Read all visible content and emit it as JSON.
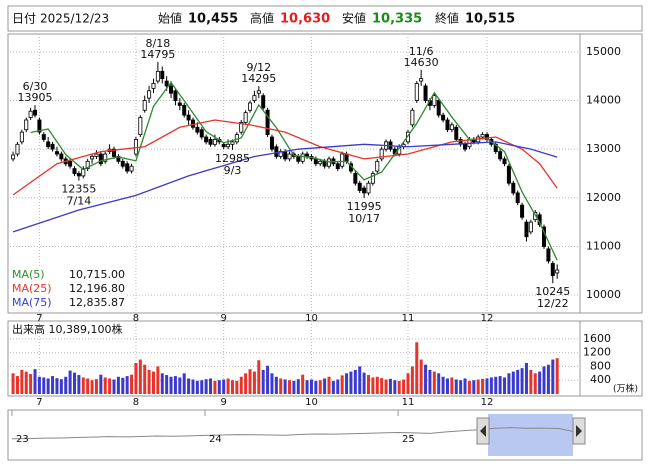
{
  "header": {
    "date_label": "日付",
    "date": "2025/12/23",
    "open_label": "始値",
    "open": "10,455",
    "high_label": "高値",
    "high": "10,630",
    "low_label": "安値",
    "low": "10,335",
    "close_label": "終値",
    "close": "10,515"
  },
  "chart_data": {
    "type": "candlestick",
    "xlim": [
      -0.7,
      129.2
    ],
    "xticks": [
      {
        "value": 6,
        "label": "7"
      },
      {
        "value": 28,
        "label": "8"
      },
      {
        "value": 48,
        "label": "9"
      },
      {
        "value": 68,
        "label": "10"
      },
      {
        "value": 90,
        "label": "11"
      },
      {
        "value": 108,
        "label": "12"
      }
    ],
    "ylim": [
      9673,
      15347
    ],
    "yticks": [
      10000,
      11000,
      12000,
      13000,
      14000,
      15000
    ],
    "grid": true,
    "up_color": "#ffffff",
    "down_color": "#000000",
    "ohlc": [
      [
        12800,
        12950,
        12750,
        12880
      ],
      [
        12900,
        13150,
        12850,
        13100
      ],
      [
        13150,
        13400,
        13100,
        13350
      ],
      [
        13400,
        13650,
        13350,
        13600
      ],
      [
        13650,
        13850,
        13600,
        13780
      ],
      [
        13800,
        13905,
        13650,
        13700
      ],
      [
        13600,
        13650,
        13300,
        13350
      ],
      [
        13300,
        13350,
        13150,
        13200
      ],
      [
        13150,
        13250,
        13000,
        13050
      ],
      [
        13100,
        13150,
        12950,
        13000
      ],
      [
        12950,
        13050,
        12850,
        12900
      ],
      [
        12900,
        12950,
        12750,
        12800
      ],
      [
        12800,
        12850,
        12650,
        12700
      ],
      [
        12750,
        12800,
        12600,
        12650
      ],
      [
        12600,
        12650,
        12450,
        12500
      ],
      [
        12500,
        12550,
        12355,
        12450
      ],
      [
        12450,
        12650,
        12400,
        12600
      ],
      [
        12600,
        12800,
        12550,
        12750
      ],
      [
        12800,
        12900,
        12700,
        12850
      ],
      [
        12850,
        12980,
        12800,
        12900
      ],
      [
        12900,
        12950,
        12650,
        12700
      ],
      [
        12750,
        12950,
        12700,
        12900
      ],
      [
        12950,
        13100,
        12900,
        13000
      ],
      [
        13000,
        13050,
        12800,
        12850
      ],
      [
        12850,
        12900,
        12700,
        12750
      ],
      [
        12750,
        12800,
        12600,
        12650
      ],
      [
        12700,
        12750,
        12500,
        12550
      ],
      [
        12550,
        12700,
        12500,
        12650
      ],
      [
        12900,
        13250,
        12850,
        13200
      ],
      [
        13300,
        13700,
        13250,
        13650
      ],
      [
        13800,
        14100,
        13750,
        14000
      ],
      [
        14050,
        14300,
        13950,
        14200
      ],
      [
        14250,
        14450,
        14150,
        14350
      ],
      [
        14400,
        14795,
        14350,
        14600
      ],
      [
        14600,
        14700,
        14350,
        14450
      ],
      [
        14400,
        14500,
        14200,
        14300
      ],
      [
        14300,
        14400,
        14050,
        14150
      ],
      [
        14200,
        14250,
        13900,
        14000
      ],
      [
        13950,
        14050,
        13800,
        13900
      ],
      [
        13900,
        13950,
        13650,
        13700
      ],
      [
        13700,
        13800,
        13500,
        13600
      ],
      [
        13600,
        13650,
        13400,
        13450
      ],
      [
        13450,
        13550,
        13300,
        13350
      ],
      [
        13400,
        13450,
        13200,
        13250
      ],
      [
        13250,
        13300,
        13100,
        13150
      ],
      [
        13200,
        13250,
        13050,
        13100
      ],
      [
        13100,
        13300,
        13050,
        13200
      ],
      [
        13200,
        13250,
        13100,
        13150
      ],
      [
        13100,
        13150,
        13000,
        13050
      ],
      [
        13050,
        13200,
        13000,
        13100
      ],
      [
        13100,
        13200,
        12985,
        13150
      ],
      [
        13150,
        13350,
        13100,
        13300
      ],
      [
        13350,
        13600,
        13300,
        13550
      ],
      [
        13550,
        13800,
        13500,
        13750
      ],
      [
        13800,
        14000,
        13750,
        13950
      ],
      [
        14000,
        14200,
        13950,
        14100
      ],
      [
        14150,
        14295,
        14050,
        14200
      ],
      [
        14100,
        14150,
        13800,
        13850
      ],
      [
        13800,
        13850,
        13250,
        13300
      ],
      [
        13250,
        13300,
        12950,
        13000
      ],
      [
        13050,
        13100,
        12800,
        12850
      ],
      [
        12850,
        13000,
        12800,
        12950
      ],
      [
        12950,
        13000,
        12750,
        12800
      ],
      [
        12800,
        12950,
        12750,
        12900
      ],
      [
        12900,
        12950,
        12800,
        12850
      ],
      [
        12850,
        12900,
        12700,
        12750
      ],
      [
        12750,
        12950,
        12700,
        12900
      ],
      [
        12900,
        12950,
        12800,
        12850
      ],
      [
        12850,
        12900,
        12750,
        12800
      ],
      [
        12800,
        12850,
        12650,
        12700
      ],
      [
        12700,
        12800,
        12650,
        12750
      ],
      [
        12750,
        12800,
        12600,
        12650
      ],
      [
        12650,
        12850,
        12600,
        12800
      ],
      [
        12800,
        12850,
        12650,
        12700
      ],
      [
        12700,
        12750,
        12550,
        12600
      ],
      [
        12650,
        12950,
        12600,
        12900
      ],
      [
        12900,
        12950,
        12700,
        12750
      ],
      [
        12700,
        12750,
        12500,
        12550
      ],
      [
        12500,
        12550,
        12250,
        12300
      ],
      [
        12300,
        12350,
        12100,
        12150
      ],
      [
        12200,
        12250,
        11995,
        12100
      ],
      [
        12100,
        12350,
        12050,
        12300
      ],
      [
        12300,
        12550,
        12250,
        12500
      ],
      [
        12550,
        12800,
        12500,
        12750
      ],
      [
        12800,
        13050,
        12750,
        13000
      ],
      [
        13000,
        13200,
        12950,
        13150
      ],
      [
        13150,
        13200,
        12950,
        13000
      ],
      [
        13000,
        13050,
        12850,
        12900
      ],
      [
        12900,
        13100,
        12850,
        13050
      ],
      [
        13050,
        13150,
        13000,
        13100
      ],
      [
        13150,
        13400,
        13100,
        13350
      ],
      [
        13500,
        13850,
        13450,
        13800
      ],
      [
        14000,
        14400,
        13950,
        14350
      ],
      [
        14400,
        14630,
        14300,
        14450
      ],
      [
        14300,
        14350,
        13950,
        14000
      ],
      [
        14000,
        14050,
        13800,
        13900
      ],
      [
        13900,
        14150,
        13850,
        14100
      ],
      [
        14000,
        14050,
        13650,
        13700
      ],
      [
        13700,
        13750,
        13550,
        13600
      ],
      [
        13600,
        13650,
        13350,
        13400
      ],
      [
        13400,
        13550,
        13350,
        13500
      ],
      [
        13450,
        13500,
        13150,
        13200
      ],
      [
        13200,
        13250,
        13050,
        13100
      ],
      [
        13100,
        13150,
        12950,
        13000
      ],
      [
        13050,
        13250,
        13000,
        13200
      ],
      [
        13200,
        13250,
        13100,
        13150
      ],
      [
        13150,
        13300,
        13100,
        13250
      ],
      [
        13250,
        13350,
        13200,
        13300
      ],
      [
        13300,
        13350,
        13150,
        13200
      ],
      [
        13200,
        13250,
        13050,
        13100
      ],
      [
        13100,
        13150,
        12900,
        12950
      ],
      [
        12950,
        13000,
        12750,
        12800
      ],
      [
        12800,
        12850,
        12650,
        12700
      ],
      [
        12650,
        12700,
        12250,
        12300
      ],
      [
        12300,
        12350,
        12050,
        12100
      ],
      [
        12100,
        12150,
        11850,
        11900
      ],
      [
        11850,
        11900,
        11550,
        11600
      ],
      [
        11500,
        11550,
        11100,
        11200
      ],
      [
        11300,
        11550,
        11250,
        11500
      ],
      [
        11550,
        11750,
        11500,
        11700
      ],
      [
        11650,
        11700,
        11400,
        11450
      ],
      [
        11400,
        11450,
        10950,
        11000
      ],
      [
        10950,
        11000,
        10650,
        10700
      ],
      [
        10650,
        10700,
        10245,
        10400
      ],
      [
        10455,
        10630,
        10335,
        10515
      ]
    ],
    "annotations": [
      {
        "date": "6/30",
        "value": 13905,
        "side": "high"
      },
      {
        "date": "7/14",
        "value": 12355,
        "side": "low"
      },
      {
        "date": "8/18",
        "value": 14795,
        "side": "high"
      },
      {
        "date": "9/3",
        "value": 12985,
        "side": "low"
      },
      {
        "date": "9/12",
        "value": 14295,
        "side": "high"
      },
      {
        "date": "10/17",
        "value": 11995,
        "side": "low"
      },
      {
        "date": "11/6",
        "value": 14630,
        "side": "high"
      },
      {
        "date": "12/22",
        "value": 10245,
        "side": "low"
      }
    ],
    "ma": [
      {
        "name": "MA(5)",
        "color": "#2e8b2e",
        "legend_value": "10,715.00",
        "x": [
          4,
          8,
          12,
          16,
          20,
          24,
          28,
          32,
          36,
          40,
          44,
          48,
          52,
          56,
          60,
          64,
          68,
          72,
          76,
          80,
          84,
          88,
          92,
          96,
          100,
          104,
          108,
          112,
          116,
          120,
          124
        ],
        "values": [
          13342,
          13416,
          12890,
          12580,
          12760,
          12840,
          12760,
          13880,
          14370,
          13870,
          13360,
          13130,
          13230,
          13910,
          13440,
          12870,
          12830,
          12740,
          12750,
          12370,
          12530,
          13020,
          13530,
          14160,
          13660,
          13200,
          13220,
          12950,
          12120,
          11490,
          10715
        ]
      },
      {
        "name": "MA(25)",
        "color": "#e8332a",
        "legend_value": "12,196.80",
        "x": [
          0,
          10,
          20,
          30,
          38,
          46,
          54,
          62,
          70,
          80,
          90,
          100,
          110,
          116,
          120,
          124
        ],
        "values": [
          12060,
          12700,
          12950,
          13050,
          13450,
          13600,
          13500,
          13350,
          13050,
          12800,
          12900,
          13150,
          13250,
          13000,
          12700,
          12197
        ]
      },
      {
        "name": "MA(75)",
        "color": "#3a3ad0",
        "legend_value": "12,835.87",
        "x": [
          0,
          15,
          28,
          40,
          55,
          65,
          80,
          90,
          100,
          110,
          118,
          124
        ],
        "values": [
          11300,
          11750,
          12050,
          12450,
          12850,
          13000,
          13100,
          13050,
          13100,
          13150,
          13000,
          12836
        ]
      }
    ],
    "volume_label": "出来高 10,389,100株",
    "volume_unit": "(万株)",
    "vlim": [
      0,
      2060
    ],
    "vticks": [
      400,
      800,
      1200,
      1600
    ],
    "volume_up_color": "#e8332a",
    "volume_down_color": "#3a3ad0",
    "volume": [
      600,
      520,
      700,
      650,
      580,
      720,
      500,
      480,
      450,
      520,
      460,
      430,
      500,
      680,
      620,
      550,
      480,
      450,
      400,
      430,
      560,
      480,
      450,
      420,
      500,
      470,
      520,
      560,
      900,
      1000,
      850,
      700,
      650,
      800,
      600,
      550,
      500,
      520,
      480,
      600,
      450,
      420,
      380,
      400,
      430,
      450,
      380,
      400,
      420,
      450,
      400,
      380,
      500,
      600,
      720,
      650,
      980,
      700,
      820,
      600,
      500,
      450,
      420,
      400,
      380,
      430,
      560,
      400,
      420,
      380,
      400,
      450,
      500,
      380,
      420,
      540,
      600,
      650,
      700,
      800,
      620,
      550,
      480,
      500,
      460,
      420,
      440,
      400,
      380,
      420,
      600,
      800,
      1500,
      1000,
      850,
      700,
      650,
      600,
      500,
      450,
      480,
      420,
      400,
      450,
      380,
      400,
      420,
      440,
      450,
      480,
      500,
      520,
      480,
      600,
      650,
      700,
      750,
      900,
      700,
      600,
      650,
      800,
      850,
      1000,
      1039
    ],
    "navigator": {
      "xlim": [
        0,
        35
      ],
      "ylim": [
        0,
        20000
      ],
      "xticks": [
        {
          "value": 0,
          "label": "23"
        },
        {
          "value": 12,
          "label": "24"
        },
        {
          "value": 24,
          "label": "25"
        }
      ],
      "values": [
        8200,
        8300,
        8500,
        8600,
        8800,
        9000,
        9200,
        9100,
        9300,
        9500,
        9400,
        9600,
        9800,
        10000,
        10200,
        10100,
        10000,
        9900,
        10300,
        10500,
        10400,
        10600,
        10800,
        11000,
        11200,
        11000,
        10800,
        11500,
        12000,
        12500,
        13200,
        13500,
        13200,
        13300,
        13100,
        11500
      ]
    }
  }
}
